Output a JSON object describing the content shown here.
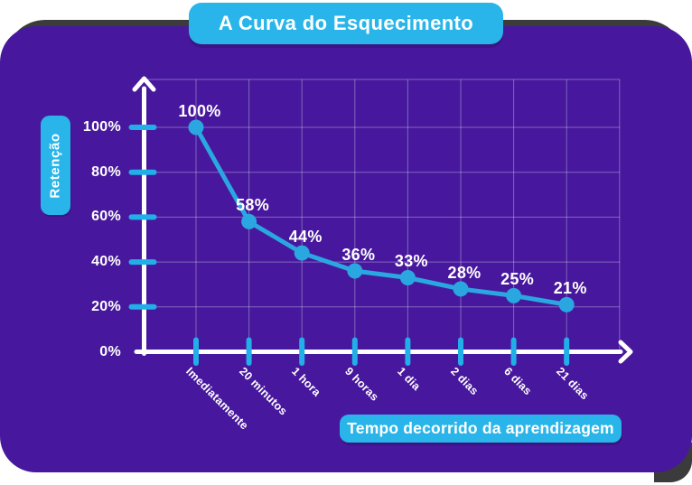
{
  "title": "A Curva do Esquecimento",
  "y_axis_badge": "Retenção",
  "x_axis_badge": "Tempo decorrido da aprendizagem",
  "colors": {
    "page_background": "#ffffff",
    "card_purple": "#47189d",
    "accent_cyan": "#29b5e9",
    "chart_cyan": "#2aa7e0",
    "tick_cyan": "#22aee8",
    "axis_white": "#ffffff",
    "grid_line": "rgba(255,255,255,0.33)",
    "card_shadow": "#3b3b3b",
    "text_white": "#ffffff"
  },
  "chart_data": {
    "type": "line",
    "title": "A Curva do Esquecimento",
    "xlabel": "Tempo decorrido da aprendizagem",
    "ylabel": "Retenção",
    "categories": [
      "Imediatamente",
      "20 minutos",
      "1 hora",
      "9 horas",
      "1 dia",
      "2 dias",
      "6 dias",
      "21 dias"
    ],
    "values": [
      100,
      58,
      44,
      36,
      33,
      28,
      25,
      21
    ],
    "point_labels": [
      "100%",
      "58%",
      "44%",
      "36%",
      "33%",
      "28%",
      "25%",
      "21%"
    ],
    "y_ticks": [
      {
        "label": "100%",
        "value": 100
      },
      {
        "label": "80%",
        "value": 80
      },
      {
        "label": "60%",
        "value": 60
      },
      {
        "label": "40%",
        "value": 40
      },
      {
        "label": "20%",
        "value": 20
      },
      {
        "label": "0%",
        "value": 0
      }
    ],
    "ylim": [
      0,
      100
    ],
    "grid": true,
    "legend": "none"
  }
}
